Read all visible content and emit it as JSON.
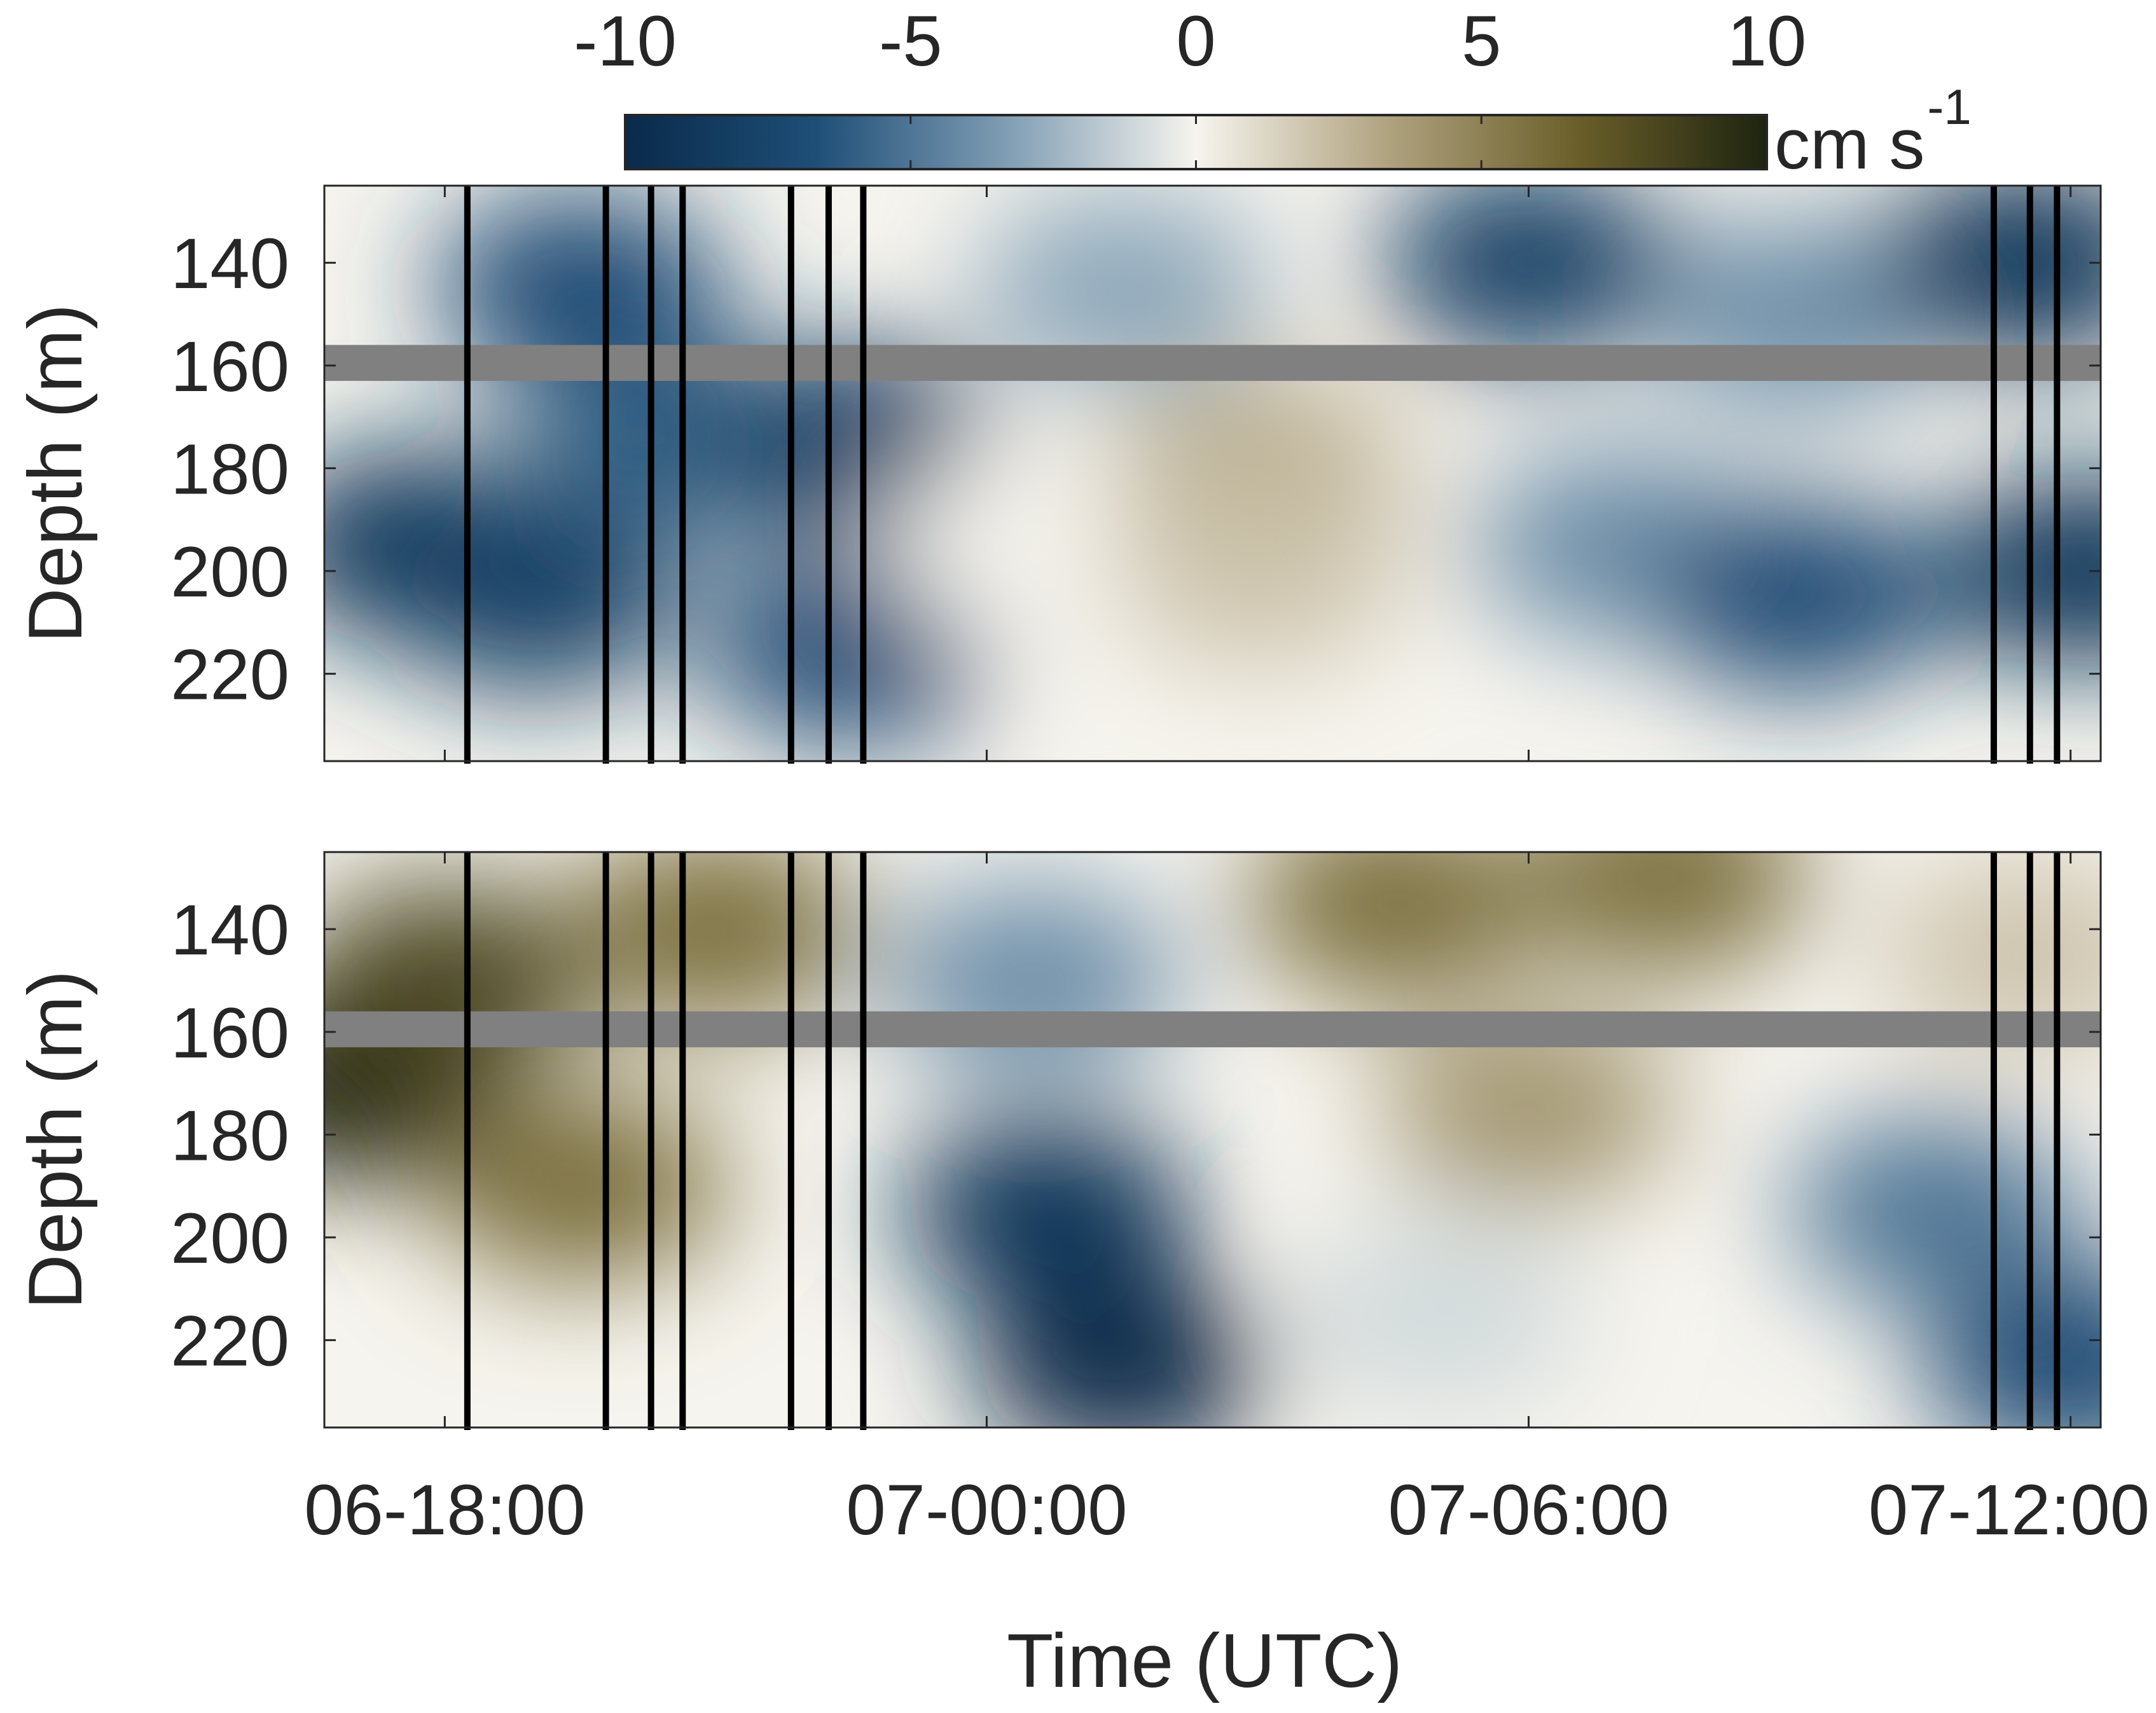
{
  "chart_data": {
    "type": "heatmap",
    "xlabel": "Time (UTC)",
    "x_tick_labels": [
      "06-18:00",
      "07-00:00",
      "07-06:00",
      "07-12:00"
    ],
    "x_ticks": [
      "2019-06-06T18:00",
      "2019-06-07T00:00",
      "2019-06-07T06:00",
      "2019-06-07T12:00"
    ],
    "xlim": [
      "2019-06-06T16:40",
      "2019-06-07T12:20"
    ],
    "colorbar": {
      "ticks": [
        -10,
        -5,
        0,
        5,
        10
      ],
      "tick_labels": [
        "-10",
        "-5",
        "0",
        "5",
        "10"
      ],
      "unit": "cm s",
      "unit_exponent": "-1",
      "clim": [
        -10,
        10
      ],
      "colormap": "blue-white-olive diverging",
      "colors": [
        "#0a2a4a",
        "#1e4e77",
        "#7f9db3",
        "#f6f4ee",
        "#b0a380",
        "#6b5f2a",
        "#1e2410"
      ]
    },
    "gap_color": "#808080",
    "profile_line_color": "#000000",
    "profile_times": [
      "2019-06-06T18:15",
      "2019-06-06T19:47",
      "2019-06-06T20:17",
      "2019-06-06T20:38",
      "2019-06-06T21:50",
      "2019-06-06T22:15",
      "2019-06-06T22:38",
      "2019-06-07T11:09",
      "2019-06-07T11:33",
      "2019-06-07T11:51"
    ],
    "panels": [
      {
        "ylabel": "Depth (m)",
        "ylim": [
          125,
          237
        ],
        "yticks": [
          140,
          160,
          180,
          200,
          220
        ],
        "ytick_labels": [
          "140",
          "160",
          "180",
          "200",
          "220"
        ],
        "y_reversed": true,
        "gap_depth": [
          156,
          163
        ],
        "features": [
          {
            "t": "2019-06-06T17:40",
            "depth": 195,
            "value": -9
          },
          {
            "t": "2019-06-06T19:00",
            "depth": 205,
            "value": -8
          },
          {
            "t": "2019-06-06T19:30",
            "depth": 145,
            "value": -7
          },
          {
            "t": "2019-06-06T20:30",
            "depth": 175,
            "value": -6
          },
          {
            "t": "2019-06-06T22:30",
            "depth": 175,
            "value": -8
          },
          {
            "t": "2019-06-06T22:30",
            "depth": 215,
            "value": -7
          },
          {
            "t": "2019-06-07T00:30",
            "depth": 195,
            "value": 0
          },
          {
            "t": "2019-06-07T01:30",
            "depth": 145,
            "value": -3
          },
          {
            "t": "2019-06-07T03:00",
            "depth": 180,
            "value": 3
          },
          {
            "t": "2019-06-07T03:00",
            "depth": 200,
            "value": 2
          },
          {
            "t": "2019-06-07T06:00",
            "depth": 140,
            "value": -8
          },
          {
            "t": "2019-06-07T07:00",
            "depth": 195,
            "value": -4
          },
          {
            "t": "2019-06-07T09:00",
            "depth": 205,
            "value": -7
          },
          {
            "t": "2019-06-07T09:00",
            "depth": 150,
            "value": -4
          },
          {
            "t": "2019-06-07T11:30",
            "depth": 140,
            "value": -9
          },
          {
            "t": "2019-06-07T12:10",
            "depth": 200,
            "value": -9
          }
        ]
      },
      {
        "ylabel": "Depth (m)",
        "ylim": [
          125,
          237
        ],
        "yticks": [
          140,
          160,
          180,
          200,
          220
        ],
        "ytick_labels": [
          "140",
          "160",
          "180",
          "200",
          "220"
        ],
        "y_reversed": true,
        "gap_depth": [
          156,
          163
        ],
        "features": [
          {
            "t": "2019-06-06T17:00",
            "depth": 170,
            "value": 10
          },
          {
            "t": "2019-06-06T18:00",
            "depth": 150,
            "value": 8
          },
          {
            "t": "2019-06-06T19:30",
            "depth": 190,
            "value": 6
          },
          {
            "t": "2019-06-06T21:00",
            "depth": 140,
            "value": 6
          },
          {
            "t": "2019-06-07T00:30",
            "depth": 150,
            "value": -4
          },
          {
            "t": "2019-06-07T00:40",
            "depth": 195,
            "value": -9
          },
          {
            "t": "2019-06-07T01:30",
            "depth": 225,
            "value": -10
          },
          {
            "t": "2019-06-07T04:30",
            "depth": 135,
            "value": 6
          },
          {
            "t": "2019-06-07T07:30",
            "depth": 130,
            "value": 6
          },
          {
            "t": "2019-06-07T06:00",
            "depth": 175,
            "value": 4
          },
          {
            "t": "2019-06-07T05:00",
            "depth": 215,
            "value": -1
          },
          {
            "t": "2019-06-07T10:30",
            "depth": 195,
            "value": -5
          },
          {
            "t": "2019-06-07T12:00",
            "depth": 225,
            "value": -7
          },
          {
            "t": "2019-06-07T11:30",
            "depth": 145,
            "value": 2
          }
        ]
      }
    ]
  }
}
